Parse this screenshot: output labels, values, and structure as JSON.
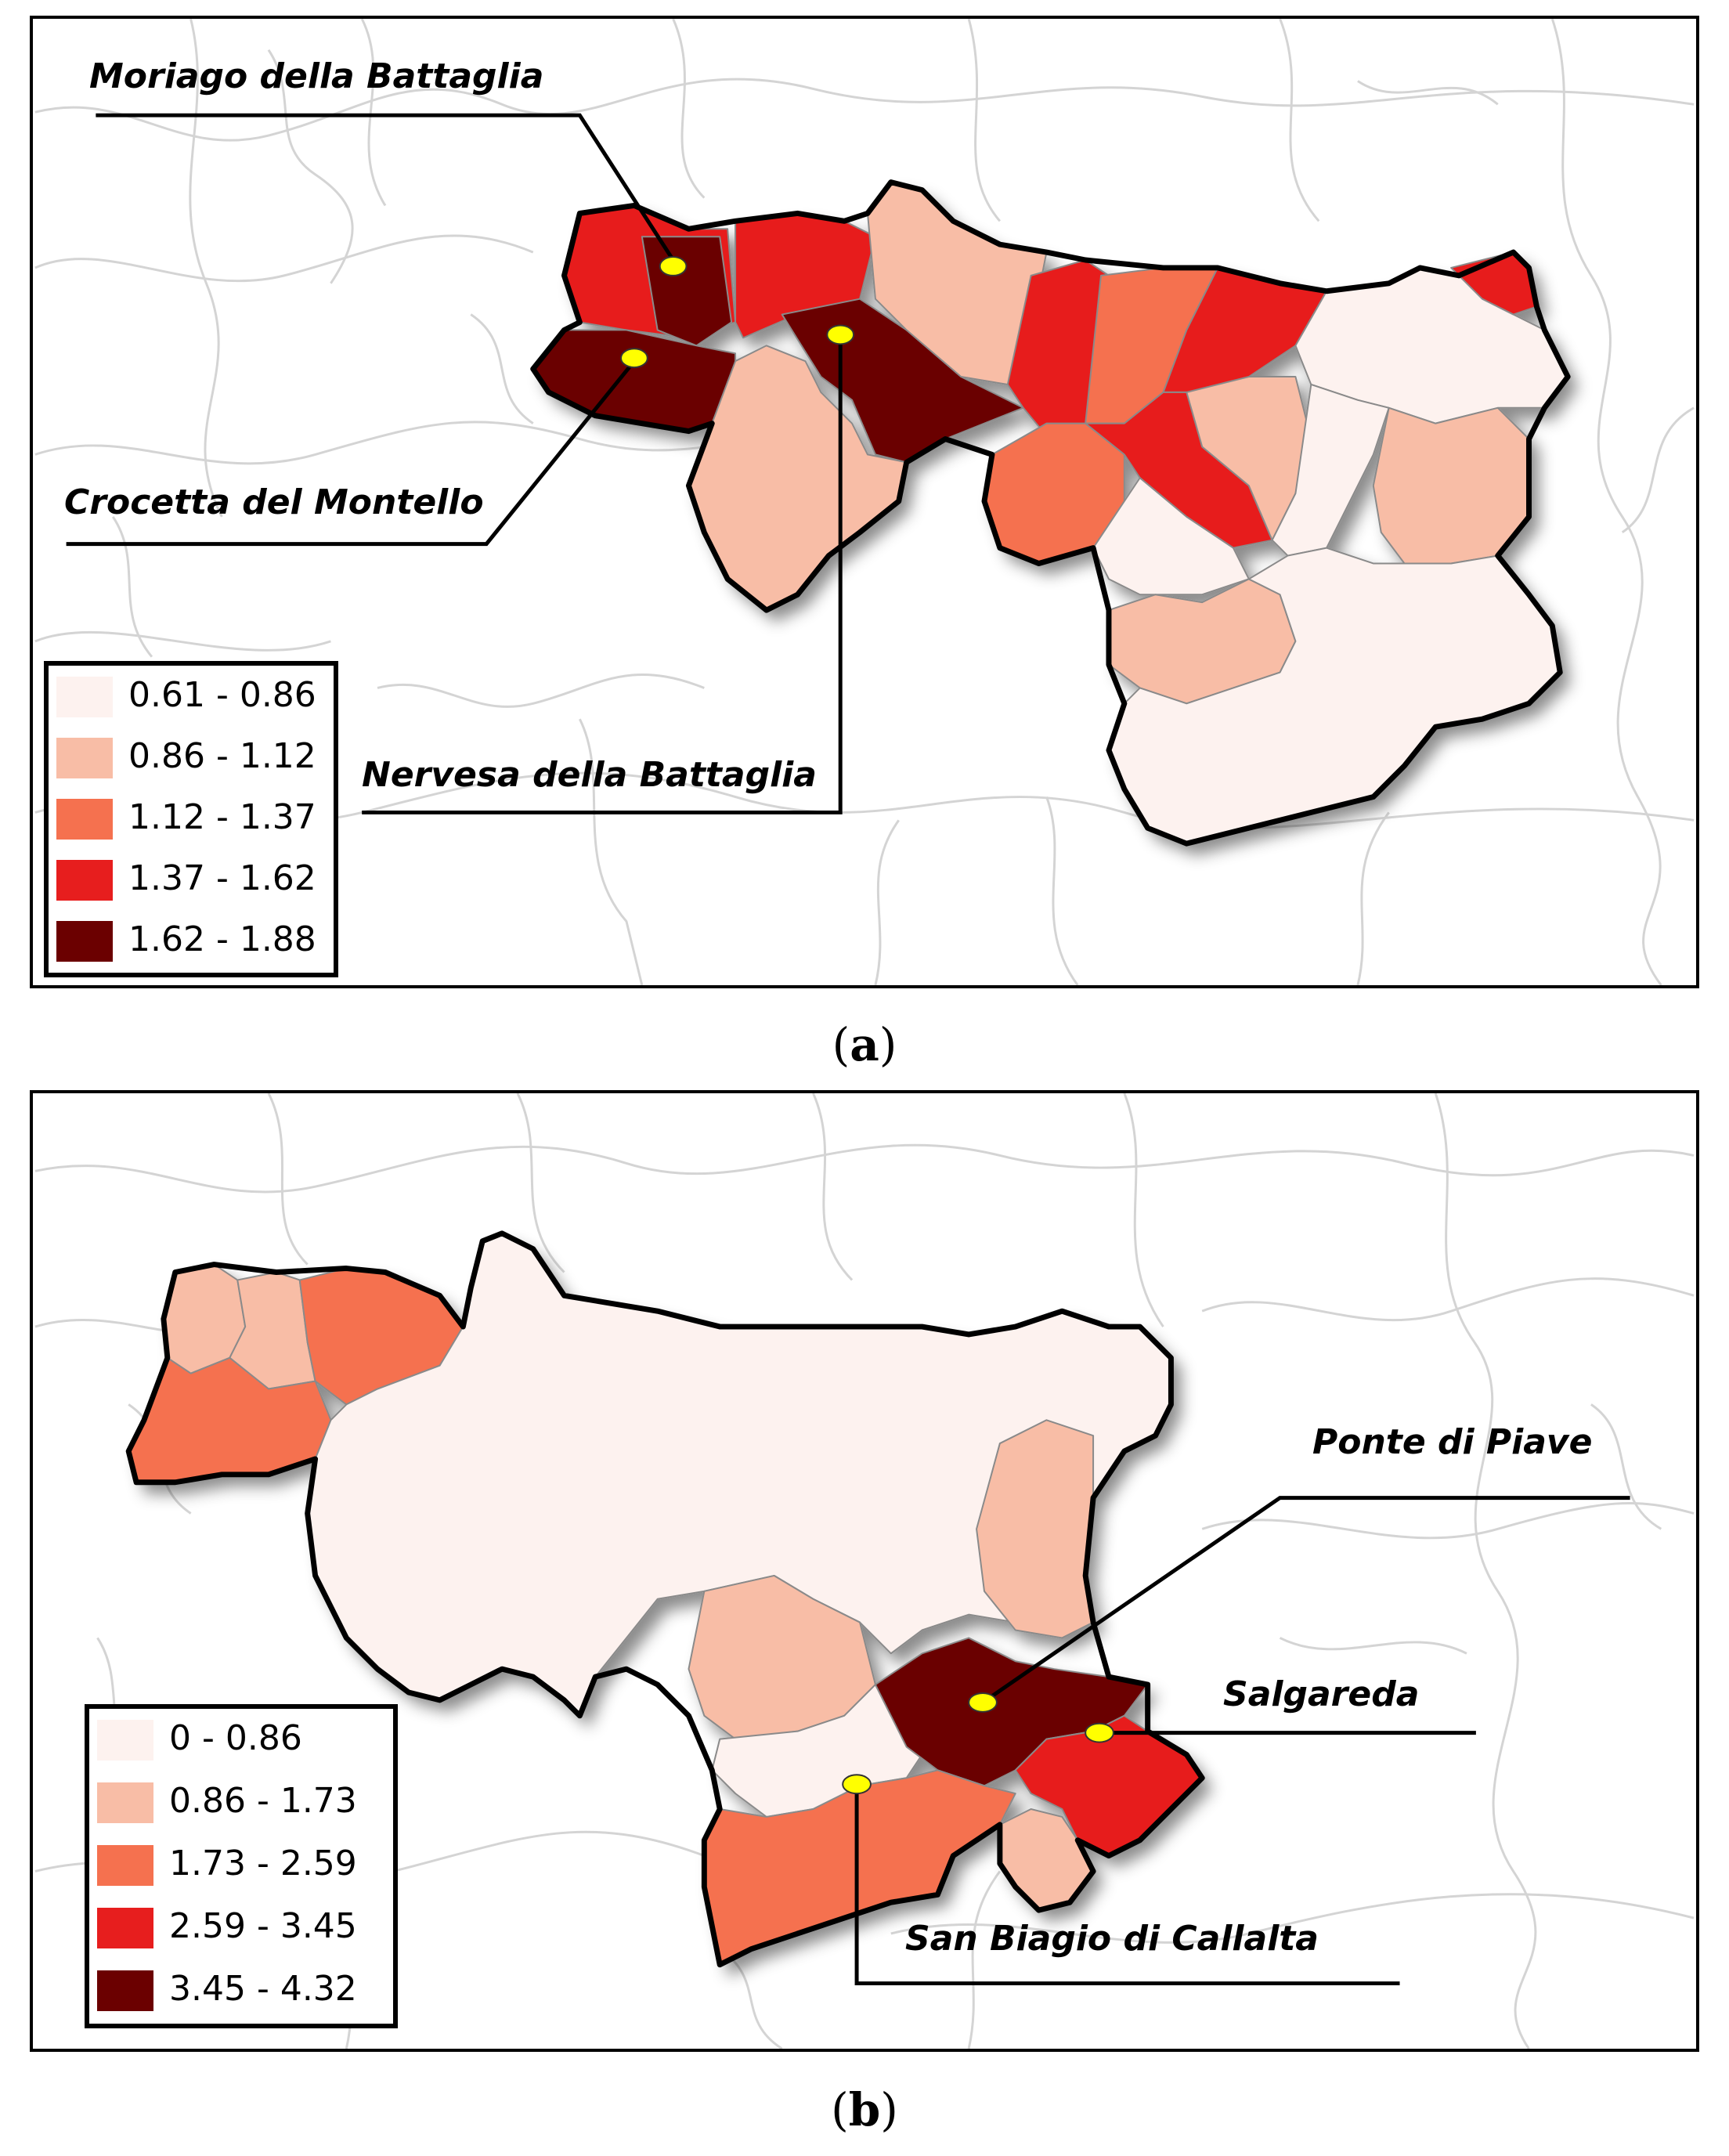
{
  "figure": {
    "panels": [
      {
        "id": "a",
        "caption": "(a)",
        "caption_letter": "a",
        "legend": [
          {
            "label": "0.61 - 0.86",
            "color": "#fdf2ef"
          },
          {
            "label": "0.86 - 1.12",
            "color": "#f8bda6"
          },
          {
            "label": "1.12 - 1.37",
            "color": "#f5714f"
          },
          {
            "label": "1.37 - 1.62",
            "color": "#e71e1e"
          },
          {
            "label": "1.62 - 1.88",
            "color": "#6b0000"
          }
        ],
        "places": [
          {
            "name": "Moriago della Battaglia",
            "class": "1.62 - 1.88"
          },
          {
            "name": "Crocetta del Montello",
            "class": "1.62 - 1.88"
          },
          {
            "name": "Nervesa della Battaglia",
            "class": "1.62 - 1.88"
          }
        ]
      },
      {
        "id": "b",
        "caption": "(b)",
        "caption_letter": "b",
        "legend": [
          {
            "label": "0 - 0.86",
            "color": "#fdf2ef"
          },
          {
            "label": "0.86 - 1.73",
            "color": "#f8bda6"
          },
          {
            "label": "1.73 - 2.59",
            "color": "#f5714f"
          },
          {
            "label": "2.59 - 3.45",
            "color": "#e71e1e"
          },
          {
            "label": "3.45 - 4.32",
            "color": "#6b0000"
          }
        ],
        "places": [
          {
            "name": "Ponte di Piave",
            "class": "3.45 - 4.32"
          },
          {
            "name": "Salgareda",
            "class": "2.59 - 3.45"
          },
          {
            "name": "San Biagio di Callalta",
            "class": "1.73 - 2.59"
          }
        ]
      }
    ],
    "colors": {
      "marker": "#ffff00",
      "background_boundaries": "#d9d9d9",
      "outline": "#000000"
    }
  }
}
